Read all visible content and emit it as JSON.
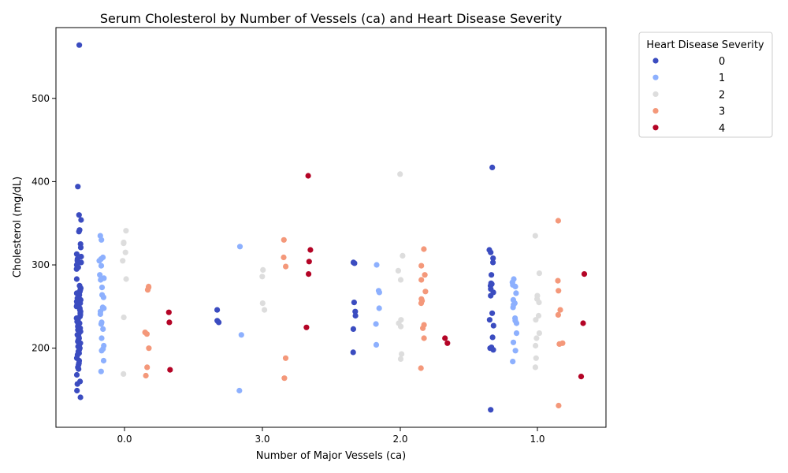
{
  "chart_data": {
    "type": "scatter",
    "title": "Serum Cholesterol by Number of Vessels (ca) and Heart Disease Severity",
    "xlabel": "Number of Major Vessels (ca)",
    "ylabel": "Cholesterol (mg/dL)",
    "categories": [
      "0.0",
      "3.0",
      "2.0",
      "1.0"
    ],
    "ylim": [
      105,
      585
    ],
    "yticks": [
      200,
      300,
      400,
      500
    ],
    "grid": false,
    "legend": {
      "title": "Heart Disease Severity",
      "placement": "outside-top-right",
      "entries": [
        "0",
        "1",
        "2",
        "3",
        "4"
      ]
    },
    "colors": [
      "#3b4cc0",
      "#8db0fe",
      "#dddddd",
      "#f4987a",
      "#b40426"
    ],
    "series": [
      {
        "name": "0",
        "points": [
          [
            "0.0",
            564
          ],
          [
            "0.0",
            394
          ],
          [
            "0.0",
            360
          ],
          [
            "0.0",
            354
          ],
          [
            "0.0",
            342
          ],
          [
            "0.0",
            340
          ],
          [
            "0.0",
            325
          ],
          [
            "0.0",
            321
          ],
          [
            "0.0",
            313
          ],
          [
            "0.0",
            310
          ],
          [
            "0.0",
            307
          ],
          [
            "0.0",
            305
          ],
          [
            "0.0",
            303
          ],
          [
            "0.0",
            300
          ],
          [
            "0.0",
            297
          ],
          [
            "0.0",
            295
          ],
          [
            "0.0",
            283
          ],
          [
            "0.0",
            275
          ],
          [
            "0.0",
            272
          ],
          [
            "0.0",
            270
          ],
          [
            "0.0",
            268
          ],
          [
            "0.0",
            266
          ],
          [
            "0.0",
            264
          ],
          [
            "0.0",
            262
          ],
          [
            "0.0",
            260
          ],
          [
            "0.0",
            258
          ],
          [
            "0.0",
            256
          ],
          [
            "0.0",
            254
          ],
          [
            "0.0",
            252
          ],
          [
            "0.0",
            250
          ],
          [
            "0.0",
            248
          ],
          [
            "0.0",
            246
          ],
          [
            "0.0",
            244
          ],
          [
            "0.0",
            242
          ],
          [
            "0.0",
            240
          ],
          [
            "0.0",
            238
          ],
          [
            "0.0",
            236
          ],
          [
            "0.0",
            234
          ],
          [
            "0.0",
            232
          ],
          [
            "0.0",
            230
          ],
          [
            "0.0",
            228
          ],
          [
            "0.0",
            226
          ],
          [
            "0.0",
            224
          ],
          [
            "0.0",
            222
          ],
          [
            "0.0",
            220
          ],
          [
            "0.0",
            218
          ],
          [
            "0.0",
            216
          ],
          [
            "0.0",
            214
          ],
          [
            "0.0",
            212
          ],
          [
            "0.0",
            210
          ],
          [
            "0.0",
            208
          ],
          [
            "0.0",
            206
          ],
          [
            "0.0",
            204
          ],
          [
            "0.0",
            202
          ],
          [
            "0.0",
            200
          ],
          [
            "0.0",
            198
          ],
          [
            "0.0",
            196
          ],
          [
            "0.0",
            194
          ],
          [
            "0.0",
            192
          ],
          [
            "0.0",
            188
          ],
          [
            "0.0",
            185
          ],
          [
            "0.0",
            182
          ],
          [
            "0.0",
            180
          ],
          [
            "0.0",
            177
          ],
          [
            "0.0",
            175
          ],
          [
            "0.0",
            168
          ],
          [
            "0.0",
            160
          ],
          [
            "0.0",
            157
          ],
          [
            "0.0",
            149
          ],
          [
            "0.0",
            141
          ],
          [
            "3.0",
            246
          ],
          [
            "3.0",
            233
          ],
          [
            "3.0",
            231
          ],
          [
            "2.0",
            303
          ],
          [
            "2.0",
            302
          ],
          [
            "2.0",
            255
          ],
          [
            "2.0",
            244
          ],
          [
            "2.0",
            239
          ],
          [
            "2.0",
            223
          ],
          [
            "2.0",
            195
          ],
          [
            "1.0",
            417
          ],
          [
            "1.0",
            318
          ],
          [
            "1.0",
            315
          ],
          [
            "1.0",
            308
          ],
          [
            "1.0",
            303
          ],
          [
            "1.0",
            288
          ],
          [
            "1.0",
            278
          ],
          [
            "1.0",
            277
          ],
          [
            "1.0",
            275
          ],
          [
            "1.0",
            271
          ],
          [
            "1.0",
            267
          ],
          [
            "1.0",
            263
          ],
          [
            "1.0",
            242
          ],
          [
            "1.0",
            234
          ],
          [
            "1.0",
            227
          ],
          [
            "1.0",
            213
          ],
          [
            "1.0",
            201
          ],
          [
            "1.0",
            200
          ],
          [
            "1.0",
            198
          ],
          [
            "1.0",
            126
          ]
        ]
      },
      {
        "name": "1",
        "points": [
          [
            "0.0",
            335
          ],
          [
            "0.0",
            330
          ],
          [
            "0.0",
            309
          ],
          [
            "0.0",
            307
          ],
          [
            "0.0",
            305
          ],
          [
            "0.0",
            299
          ],
          [
            "0.0",
            288
          ],
          [
            "0.0",
            284
          ],
          [
            "0.0",
            282
          ],
          [
            "0.0",
            273
          ],
          [
            "0.0",
            264
          ],
          [
            "0.0",
            261
          ],
          [
            "0.0",
            249
          ],
          [
            "0.0",
            248
          ],
          [
            "0.0",
            244
          ],
          [
            "0.0",
            241
          ],
          [
            "0.0",
            231
          ],
          [
            "0.0",
            229
          ],
          [
            "0.0",
            223
          ],
          [
            "0.0",
            212
          ],
          [
            "0.0",
            203
          ],
          [
            "0.0",
            199
          ],
          [
            "0.0",
            197
          ],
          [
            "0.0",
            185
          ],
          [
            "0.0",
            172
          ],
          [
            "3.0",
            322
          ],
          [
            "3.0",
            216
          ],
          [
            "3.0",
            149
          ],
          [
            "2.0",
            300
          ],
          [
            "2.0",
            269
          ],
          [
            "2.0",
            267
          ],
          [
            "2.0",
            248
          ],
          [
            "2.0",
            229
          ],
          [
            "2.0",
            204
          ],
          [
            "1.0",
            283
          ],
          [
            "1.0",
            279
          ],
          [
            "1.0",
            276
          ],
          [
            "1.0",
            274
          ],
          [
            "1.0",
            266
          ],
          [
            "1.0",
            258
          ],
          [
            "1.0",
            254
          ],
          [
            "1.0",
            252
          ],
          [
            "1.0",
            249
          ],
          [
            "1.0",
            236
          ],
          [
            "1.0",
            233
          ],
          [
            "1.0",
            230
          ],
          [
            "1.0",
            218
          ],
          [
            "1.0",
            207
          ],
          [
            "1.0",
            197
          ],
          [
            "1.0",
            184
          ]
        ]
      },
      {
        "name": "2",
        "points": [
          [
            "0.0",
            341
          ],
          [
            "0.0",
            327
          ],
          [
            "0.0",
            326
          ],
          [
            "0.0",
            315
          ],
          [
            "0.0",
            305
          ],
          [
            "0.0",
            283
          ],
          [
            "0.0",
            237
          ],
          [
            "0.0",
            169
          ],
          [
            "3.0",
            294
          ],
          [
            "3.0",
            286
          ],
          [
            "3.0",
            254
          ],
          [
            "3.0",
            246
          ],
          [
            "2.0",
            409
          ],
          [
            "2.0",
            311
          ],
          [
            "2.0",
            293
          ],
          [
            "2.0",
            282
          ],
          [
            "2.0",
            234
          ],
          [
            "2.0",
            230
          ],
          [
            "2.0",
            226
          ],
          [
            "2.0",
            193
          ],
          [
            "2.0",
            187
          ],
          [
            "1.0",
            335
          ],
          [
            "1.0",
            290
          ],
          [
            "1.0",
            263
          ],
          [
            "1.0",
            259
          ],
          [
            "1.0",
            255
          ],
          [
            "1.0",
            239
          ],
          [
            "1.0",
            234
          ],
          [
            "1.0",
            218
          ],
          [
            "1.0",
            212
          ],
          [
            "1.0",
            203
          ],
          [
            "1.0",
            188
          ],
          [
            "1.0",
            177
          ]
        ]
      },
      {
        "name": "3",
        "points": [
          [
            "0.0",
            274
          ],
          [
            "0.0",
            273
          ],
          [
            "0.0",
            270
          ],
          [
            "0.0",
            219
          ],
          [
            "0.0",
            217
          ],
          [
            "0.0",
            200
          ],
          [
            "0.0",
            177
          ],
          [
            "0.0",
            167
          ],
          [
            "3.0",
            330
          ],
          [
            "3.0",
            309
          ],
          [
            "3.0",
            298
          ],
          [
            "3.0",
            188
          ],
          [
            "3.0",
            164
          ],
          [
            "2.0",
            319
          ],
          [
            "2.0",
            299
          ],
          [
            "2.0",
            288
          ],
          [
            "2.0",
            282
          ],
          [
            "2.0",
            268
          ],
          [
            "2.0",
            259
          ],
          [
            "2.0",
            257
          ],
          [
            "2.0",
            254
          ],
          [
            "2.0",
            228
          ],
          [
            "2.0",
            224
          ],
          [
            "2.0",
            212
          ],
          [
            "2.0",
            176
          ],
          [
            "1.0",
            353
          ],
          [
            "1.0",
            281
          ],
          [
            "1.0",
            269
          ],
          [
            "1.0",
            246
          ],
          [
            "1.0",
            240
          ],
          [
            "1.0",
            206
          ],
          [
            "1.0",
            205
          ],
          [
            "1.0",
            131
          ]
        ]
      },
      {
        "name": "4",
        "points": [
          [
            "0.0",
            243
          ],
          [
            "0.0",
            231
          ],
          [
            "0.0",
            174
          ],
          [
            "3.0",
            407
          ],
          [
            "3.0",
            318
          ],
          [
            "3.0",
            304
          ],
          [
            "3.0",
            289
          ],
          [
            "3.0",
            225
          ],
          [
            "2.0",
            212
          ],
          [
            "2.0",
            206
          ],
          [
            "1.0",
            289
          ],
          [
            "1.0",
            230
          ],
          [
            "1.0",
            166
          ]
        ]
      }
    ]
  }
}
